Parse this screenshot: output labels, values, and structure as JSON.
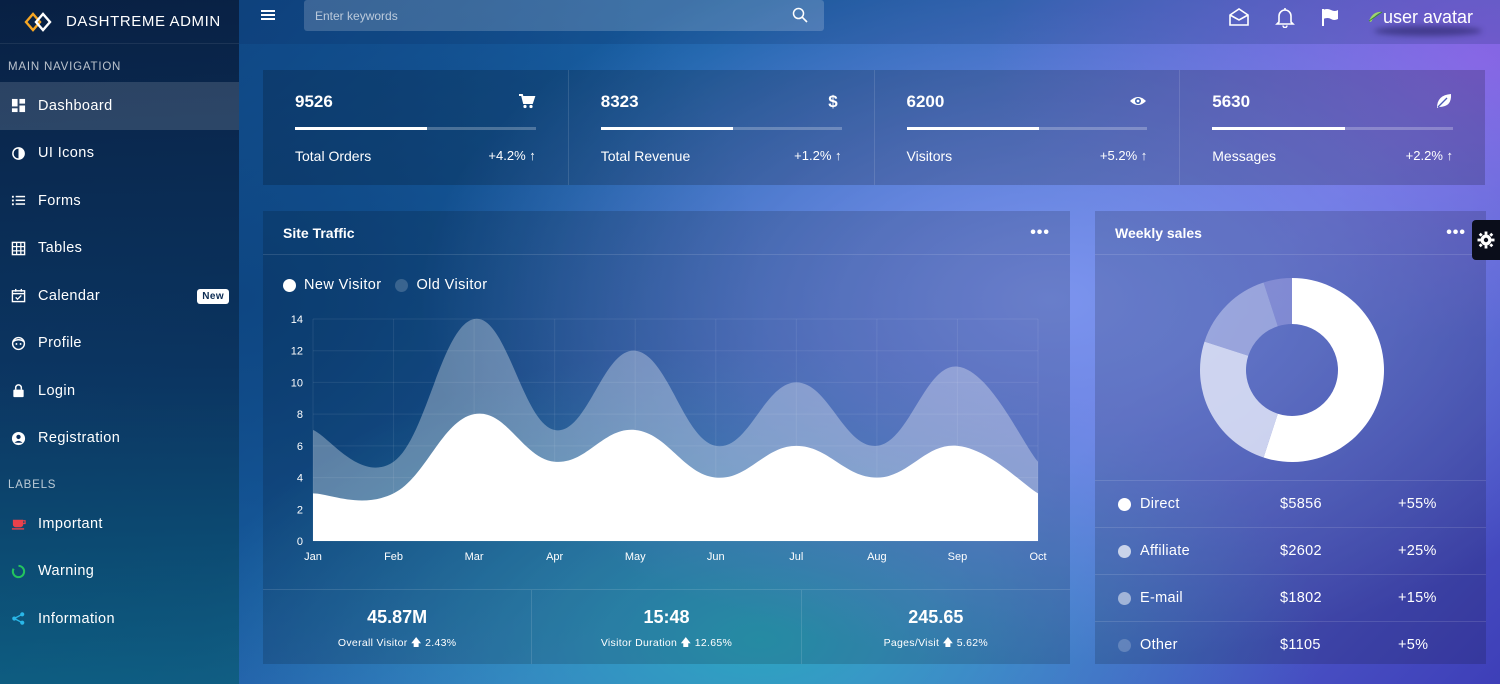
{
  "brand": {
    "name": "DASHTREME ADMIN"
  },
  "sidebar": {
    "main_header": "MAIN NAVIGATION",
    "items": [
      {
        "label": "Dashboard",
        "icon": "dashboard-icon"
      },
      {
        "label": "UI Icons",
        "icon": "contrast-icon"
      },
      {
        "label": "Forms",
        "icon": "list-icon"
      },
      {
        "label": "Tables",
        "icon": "table-icon"
      },
      {
        "label": "Calendar",
        "icon": "calendar-icon",
        "badge": "New"
      },
      {
        "label": "Profile",
        "icon": "face-icon"
      },
      {
        "label": "Login",
        "icon": "lock-icon"
      },
      {
        "label": "Registration",
        "icon": "account-icon"
      }
    ],
    "labels_header": "LABELS",
    "labels": [
      {
        "label": "Important",
        "icon": "cup-icon",
        "color": "#e8414b"
      },
      {
        "label": "Warning",
        "icon": "circle-notch-icon",
        "color": "#23c45e"
      },
      {
        "label": "Information",
        "icon": "share-icon",
        "color": "#2ab7e8"
      }
    ]
  },
  "topbar": {
    "search_placeholder": "Enter keywords",
    "avatar_alt": "user avatar"
  },
  "stats": [
    {
      "value": "9526",
      "label": "Total Orders",
      "change": "+4.2% ↑",
      "icon": "cart-icon",
      "progress": 0.55
    },
    {
      "value": "8323",
      "label": "Total Revenue",
      "change": "+1.2% ↑",
      "icon": "dollar-icon",
      "progress": 0.55
    },
    {
      "value": "6200",
      "label": "Visitors",
      "change": "+5.2% ↑",
      "icon": "eye-icon",
      "progress": 0.55
    },
    {
      "value": "5630",
      "label": "Messages",
      "change": "+2.2% ↑",
      "icon": "leaf-icon",
      "progress": 0.55
    }
  ],
  "traffic": {
    "title": "Site Traffic",
    "menu": "•••",
    "footer": [
      {
        "value": "45.87M",
        "label": "Overall Visitor",
        "change": "2.43%"
      },
      {
        "value": "15:48",
        "label": "Visitor Duration",
        "change": "12.65%"
      },
      {
        "value": "245.65",
        "label": "Pages/Visit",
        "change": "5.62%"
      }
    ]
  },
  "chart_data": {
    "type": "area",
    "categories": [
      "Jan",
      "Feb",
      "Mar",
      "Apr",
      "May",
      "Jun",
      "Jul",
      "Aug",
      "Sep",
      "Oct"
    ],
    "series": [
      {
        "name": "New Visitor",
        "values": [
          3,
          3,
          8,
          5,
          7,
          4,
          6,
          4,
          6,
          3
        ],
        "color": "#ffffff"
      },
      {
        "name": "Old Visitor",
        "values": [
          7,
          5,
          14,
          7,
          12,
          6,
          10,
          6,
          11,
          5
        ],
        "color": "rgba(255,255,255,0.3)"
      }
    ],
    "ylim": [
      0,
      14
    ],
    "yticks": [
      0,
      2,
      4,
      6,
      8,
      10,
      12,
      14
    ],
    "grid": true,
    "legend": "top-left"
  },
  "weekly": {
    "title": "Weekly sales",
    "menu": "•••",
    "rows": [
      {
        "name": "Direct",
        "amount": "$5856",
        "pct": "+55%",
        "color": "#ffffff"
      },
      {
        "name": "Affiliate",
        "amount": "$2602",
        "pct": "+25%",
        "color": "rgba(255,255,255,0.7)"
      },
      {
        "name": "E-mail",
        "amount": "$1802",
        "pct": "+15%",
        "color": "rgba(255,255,255,0.5)"
      },
      {
        "name": "Other",
        "amount": "$1105",
        "pct": "+5%",
        "color": "rgba(255,255,255,0.2)"
      }
    ],
    "donut": [
      55,
      25,
      15,
      5
    ]
  }
}
